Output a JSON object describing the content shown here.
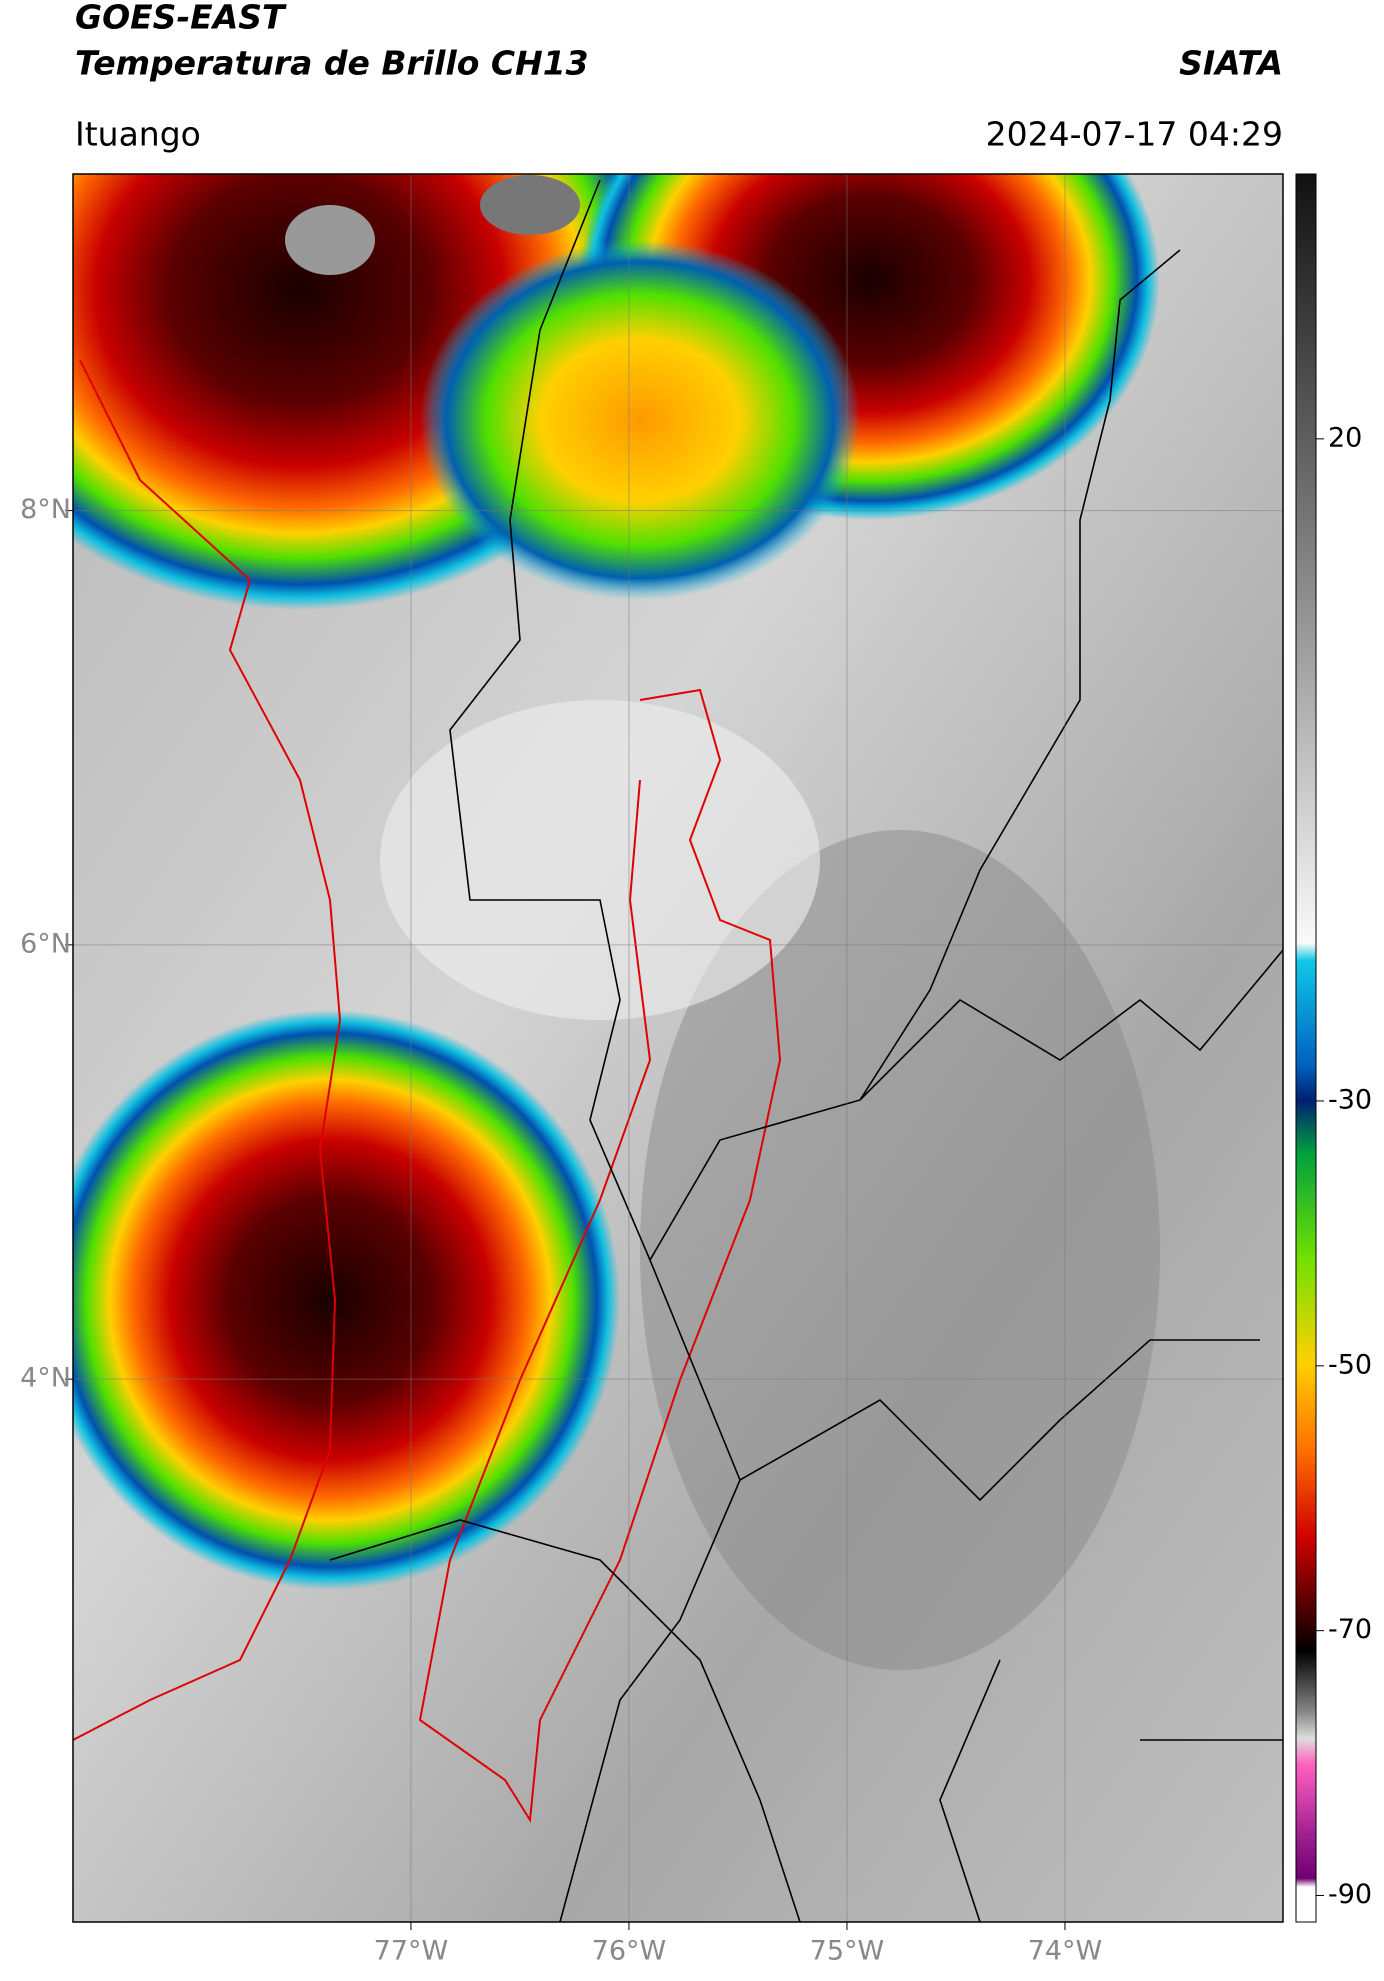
{
  "header": {
    "title": "GOES-EAST",
    "subtitle": "Temperatura de Brillo CH13",
    "source": "SIATA",
    "location": "Ituango",
    "timestamp": "2024-07-17 04:29"
  },
  "map": {
    "xlim": [
      -78.55,
      -73.0
    ],
    "ylim": [
      1.5,
      9.55
    ],
    "xticks": [
      {
        "value": -77,
        "label": "77°W"
      },
      {
        "value": -76,
        "label": "76°W"
      },
      {
        "value": -75,
        "label": "75°W"
      },
      {
        "value": -74,
        "label": "74°W"
      }
    ],
    "yticks": [
      {
        "value": 8,
        "label": "8°N"
      },
      {
        "value": 6,
        "label": "6°N"
      },
      {
        "value": 4,
        "label": "4°N"
      }
    ],
    "grid": true
  },
  "colorbar": {
    "lim": [
      -92,
      40
    ],
    "ticks": [
      20,
      -30,
      -50,
      -70,
      -90
    ]
  }
}
